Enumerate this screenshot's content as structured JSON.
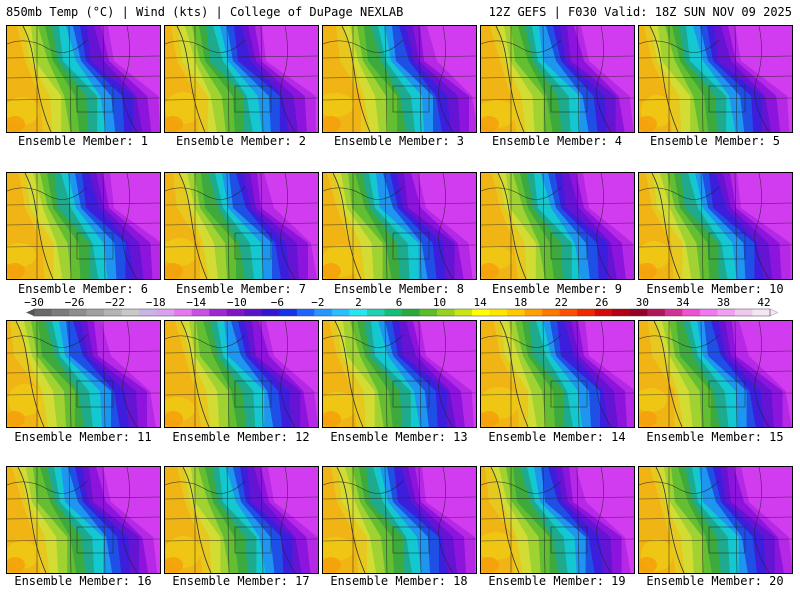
{
  "header": {
    "left": "850mb Temp (°C) | Wind (kts) | College of DuPage NEXLAB",
    "right": "12Z GEFS | F030 Valid: 18Z SUN NOV 09 2025"
  },
  "panels": [
    {
      "label": "Ensemble Member: 1"
    },
    {
      "label": "Ensemble Member: 2"
    },
    {
      "label": "Ensemble Member: 3"
    },
    {
      "label": "Ensemble Member: 4"
    },
    {
      "label": "Ensemble Member: 5"
    },
    {
      "label": "Ensemble Member: 6"
    },
    {
      "label": "Ensemble Member: 7"
    },
    {
      "label": "Ensemble Member: 8"
    },
    {
      "label": "Ensemble Member: 9"
    },
    {
      "label": "Ensemble Member: 10"
    },
    {
      "label": "Ensemble Member: 11"
    },
    {
      "label": "Ensemble Member: 12"
    },
    {
      "label": "Ensemble Member: 13"
    },
    {
      "label": "Ensemble Member: 14"
    },
    {
      "label": "Ensemble Member: 15"
    },
    {
      "label": "Ensemble Member: 16"
    },
    {
      "label": "Ensemble Member: 17"
    },
    {
      "label": "Ensemble Member: 18"
    },
    {
      "label": "Ensemble Member: 19"
    },
    {
      "label": "Ensemble Member: 20"
    }
  ],
  "colorbar": {
    "tick_labels": [
      "−30",
      "−26",
      "−22",
      "−18",
      "−14",
      "−10",
      "−6",
      "−2",
      "2",
      "6",
      "10",
      "14",
      "18",
      "22",
      "26",
      "30",
      "34",
      "38",
      "42"
    ],
    "colors": [
      "#6a6a6a",
      "#7c7c7c",
      "#8e8e8e",
      "#a0a0a0",
      "#b4b4b4",
      "#c8c8c8",
      "#c8b4e6",
      "#dca0f0",
      "#e678f0",
      "#c850e6",
      "#a028d2",
      "#8214c8",
      "#5a14c8",
      "#3214d2",
      "#1432e6",
      "#1e64ff",
      "#2896ff",
      "#28beff",
      "#28e6f0",
      "#1ed2b4",
      "#14be78",
      "#28aa3c",
      "#5abe28",
      "#96d21e",
      "#c8e614",
      "#ffff00",
      "#ffe600",
      "#ffc800",
      "#ffa000",
      "#ff7800",
      "#ff5000",
      "#f02800",
      "#d20a0a",
      "#b40014",
      "#960028",
      "#b4145a",
      "#d23296",
      "#f050d2",
      "#f078f0",
      "#f0a0f0",
      "#f0c8f0",
      "#f5e6f5"
    ]
  }
}
